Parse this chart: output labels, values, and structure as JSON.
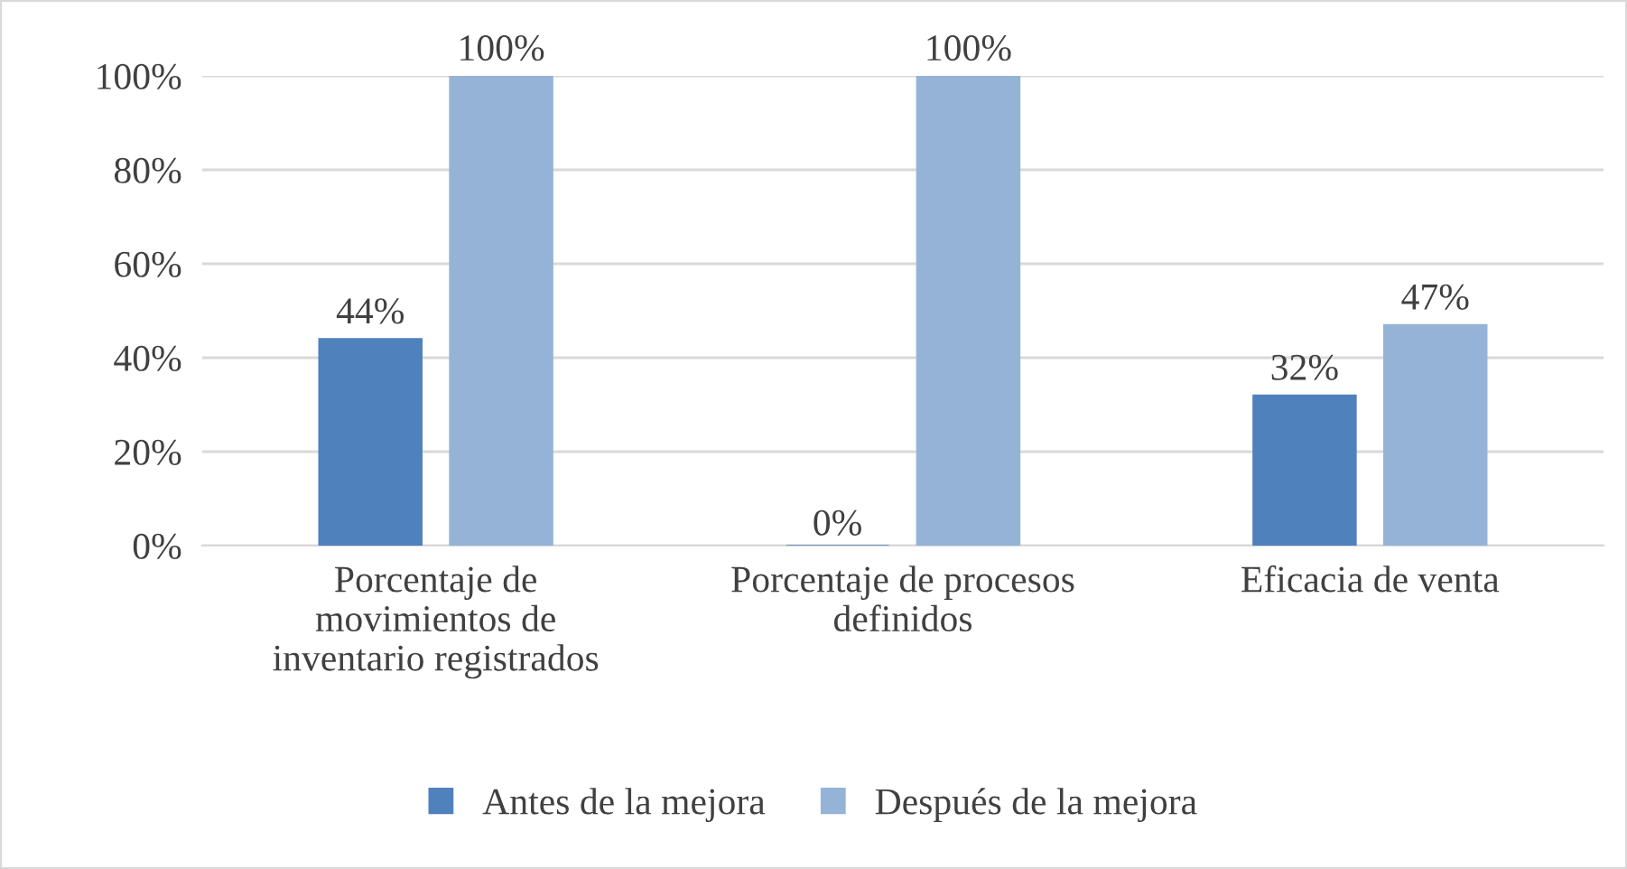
{
  "chart_data": {
    "type": "bar",
    "categories": [
      "Porcentaje de\nmovimientos de\ninventario registrados",
      "Porcentaje de procesos\ndefinidos",
      "Eficacia de venta"
    ],
    "series": [
      {
        "name": "Antes de la mejora",
        "color": "#4f81bd",
        "values": [
          44,
          0,
          32
        ],
        "value_labels": [
          "44%",
          "0%",
          "32%"
        ]
      },
      {
        "name": "Después de la mejora",
        "color": "#95b3d7",
        "values": [
          100,
          100,
          47
        ],
        "value_labels": [
          "100%",
          "100%",
          "47%"
        ]
      }
    ],
    "ylim": [
      0,
      100
    ],
    "yticks": [
      {
        "value": 0,
        "label": "0%"
      },
      {
        "value": 20,
        "label": "20%"
      },
      {
        "value": 40,
        "label": "40%"
      },
      {
        "value": 60,
        "label": "60%"
      },
      {
        "value": 80,
        "label": "80%"
      },
      {
        "value": 100,
        "label": "100%"
      }
    ],
    "grid": "y",
    "legend": "bottom"
  }
}
